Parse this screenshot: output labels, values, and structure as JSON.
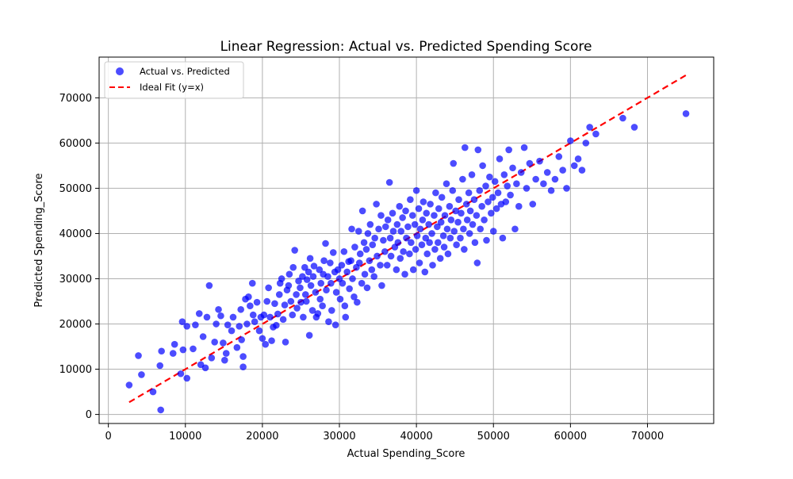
{
  "chart_data": {
    "type": "scatter",
    "title": "Linear Regression: Actual vs. Predicted Spending Score",
    "xlabel": "Actual Spending_Score",
    "ylabel": "Predicted Spending_Score",
    "xlim": [
      -1200,
      78600
    ],
    "ylim": [
      -2000,
      79000
    ],
    "xticks": [
      0,
      10000,
      20000,
      30000,
      40000,
      50000,
      60000,
      70000
    ],
    "yticks": [
      0,
      10000,
      20000,
      30000,
      40000,
      50000,
      60000,
      70000
    ],
    "grid": true,
    "legend_position": "top-left",
    "colors": {
      "points": "#0000ff",
      "ideal_line": "#ff0000"
    },
    "series": [
      {
        "name": "Actual vs. Predicted",
        "kind": "scatter",
        "points": [
          [
            2700,
            6500
          ],
          [
            3900,
            13000
          ],
          [
            4300,
            8800
          ],
          [
            5800,
            5000
          ],
          [
            6700,
            10800
          ],
          [
            6800,
            1000
          ],
          [
            6900,
            14000
          ],
          [
            8400,
            13500
          ],
          [
            8600,
            15500
          ],
          [
            9400,
            9000
          ],
          [
            9600,
            20500
          ],
          [
            9700,
            14300
          ],
          [
            10200,
            8000
          ],
          [
            10200,
            19500
          ],
          [
            11000,
            14500
          ],
          [
            11300,
            19800
          ],
          [
            11800,
            22300
          ],
          [
            12000,
            11000
          ],
          [
            12300,
            17200
          ],
          [
            12600,
            10300
          ],
          [
            12800,
            21500
          ],
          [
            13100,
            28500
          ],
          [
            13400,
            12500
          ],
          [
            13800,
            16000
          ],
          [
            14000,
            20000
          ],
          [
            14300,
            23200
          ],
          [
            14600,
            21800
          ],
          [
            14900,
            15800
          ],
          [
            15100,
            12000
          ],
          [
            15300,
            13500
          ],
          [
            15500,
            19800
          ],
          [
            16000,
            18500
          ],
          [
            16200,
            21500
          ],
          [
            16700,
            14800
          ],
          [
            17000,
            19500
          ],
          [
            17200,
            23200
          ],
          [
            17300,
            16500
          ],
          [
            17500,
            10500
          ],
          [
            17500,
            12800
          ],
          [
            17800,
            25500
          ],
          [
            18000,
            20000
          ],
          [
            18200,
            26000
          ],
          [
            18400,
            24000
          ],
          [
            18700,
            29000
          ],
          [
            18800,
            22000
          ],
          [
            19000,
            20500
          ],
          [
            19300,
            24800
          ],
          [
            19600,
            18500
          ],
          [
            19800,
            21500
          ],
          [
            20000,
            16800
          ],
          [
            20200,
            22000
          ],
          [
            20400,
            15500
          ],
          [
            20600,
            25000
          ],
          [
            20800,
            28000
          ],
          [
            21000,
            21500
          ],
          [
            21200,
            16300
          ],
          [
            21400,
            19300
          ],
          [
            21600,
            24500
          ],
          [
            21800,
            19700
          ],
          [
            22000,
            22200
          ],
          [
            22200,
            26500
          ],
          [
            22300,
            29000
          ],
          [
            22500,
            30000
          ],
          [
            22700,
            21000
          ],
          [
            22900,
            24200
          ],
          [
            23000,
            16000
          ],
          [
            23200,
            27500
          ],
          [
            23400,
            28500
          ],
          [
            23500,
            31000
          ],
          [
            23700,
            25000
          ],
          [
            23900,
            22000
          ],
          [
            24000,
            32500
          ],
          [
            24200,
            36300
          ],
          [
            24400,
            26500
          ],
          [
            24500,
            23500
          ],
          [
            24700,
            29500
          ],
          [
            24900,
            28000
          ],
          [
            25000,
            24800
          ],
          [
            25200,
            30500
          ],
          [
            25300,
            21500
          ],
          [
            25500,
            32500
          ],
          [
            25600,
            26500
          ],
          [
            25700,
            25000
          ],
          [
            25800,
            29800
          ],
          [
            26000,
            31500
          ],
          [
            26100,
            17500
          ],
          [
            26200,
            34500
          ],
          [
            26300,
            28500
          ],
          [
            26500,
            23000
          ],
          [
            26600,
            30500
          ],
          [
            26700,
            32800
          ],
          [
            26900,
            27000
          ],
          [
            27000,
            21500
          ],
          [
            27200,
            22300
          ],
          [
            27400,
            32000
          ],
          [
            27500,
            25500
          ],
          [
            27600,
            29000
          ],
          [
            27800,
            24000
          ],
          [
            27900,
            31000
          ],
          [
            28000,
            34000
          ],
          [
            28200,
            37800
          ],
          [
            28300,
            27500
          ],
          [
            28500,
            30500
          ],
          [
            28600,
            20500
          ],
          [
            28800,
            33500
          ],
          [
            28900,
            29000
          ],
          [
            29000,
            23000
          ],
          [
            29200,
            35800
          ],
          [
            29400,
            31500
          ],
          [
            29500,
            19800
          ],
          [
            29600,
            27000
          ],
          [
            29800,
            32000
          ],
          [
            30000,
            30000
          ],
          [
            30100,
            25500
          ],
          [
            30300,
            33000
          ],
          [
            30400,
            29000
          ],
          [
            30600,
            36000
          ],
          [
            30700,
            24000
          ],
          [
            30800,
            21500
          ],
          [
            31000,
            31500
          ],
          [
            31200,
            33800
          ],
          [
            31300,
            27800
          ],
          [
            31500,
            34000
          ],
          [
            31600,
            41000
          ],
          [
            31700,
            30000
          ],
          [
            31900,
            26000
          ],
          [
            32000,
            37000
          ],
          [
            32200,
            32500
          ],
          [
            32300,
            24800
          ],
          [
            32500,
            40500
          ],
          [
            32600,
            33500
          ],
          [
            32700,
            35500
          ],
          [
            32900,
            29000
          ],
          [
            33000,
            45000
          ],
          [
            33200,
            38000
          ],
          [
            33300,
            31000
          ],
          [
            33500,
            36500
          ],
          [
            33600,
            28000
          ],
          [
            33700,
            40000
          ],
          [
            33900,
            34000
          ],
          [
            34000,
            42000
          ],
          [
            34200,
            32000
          ],
          [
            34300,
            37500
          ],
          [
            34500,
            30500
          ],
          [
            34600,
            39000
          ],
          [
            34800,
            46500
          ],
          [
            34900,
            35000
          ],
          [
            35100,
            41000
          ],
          [
            35300,
            33000
          ],
          [
            35400,
            44000
          ],
          [
            35500,
            28500
          ],
          [
            35700,
            38500
          ],
          [
            35900,
            36000
          ],
          [
            36000,
            41500
          ],
          [
            36200,
            33000
          ],
          [
            36300,
            43000
          ],
          [
            36500,
            51300
          ],
          [
            36600,
            39000
          ],
          [
            36700,
            35000
          ],
          [
            36900,
            44500
          ],
          [
            37000,
            40500
          ],
          [
            37200,
            37000
          ],
          [
            37400,
            32000
          ],
          [
            37500,
            42000
          ],
          [
            37600,
            38000
          ],
          [
            37800,
            46000
          ],
          [
            37900,
            34500
          ],
          [
            38000,
            40500
          ],
          [
            38200,
            43500
          ],
          [
            38300,
            36000
          ],
          [
            38500,
            31000
          ],
          [
            38600,
            45000
          ],
          [
            38700,
            39000
          ],
          [
            38900,
            41500
          ],
          [
            39100,
            35500
          ],
          [
            39200,
            47500
          ],
          [
            39300,
            38000
          ],
          [
            39500,
            44000
          ],
          [
            39600,
            32000
          ],
          [
            39800,
            42000
          ],
          [
            39900,
            36500
          ],
          [
            40000,
            49500
          ],
          [
            40100,
            39500
          ],
          [
            40300,
            45500
          ],
          [
            40400,
            33500
          ],
          [
            40500,
            41000
          ],
          [
            40700,
            37500
          ],
          [
            40800,
            43000
          ],
          [
            40900,
            47000
          ],
          [
            41100,
            31500
          ],
          [
            41200,
            39000
          ],
          [
            41300,
            44500
          ],
          [
            41400,
            35500
          ],
          [
            41600,
            42000
          ],
          [
            41700,
            38000
          ],
          [
            41800,
            46500
          ],
          [
            42000,
            40000
          ],
          [
            42100,
            33000
          ],
          [
            42300,
            44000
          ],
          [
            42400,
            36500
          ],
          [
            42500,
            49000
          ],
          [
            42700,
            41500
          ],
          [
            42800,
            38000
          ],
          [
            42900,
            45500
          ],
          [
            43100,
            34500
          ],
          [
            43200,
            42500
          ],
          [
            43300,
            48000
          ],
          [
            43500,
            39500
          ],
          [
            43600,
            37000
          ],
          [
            43700,
            44000
          ],
          [
            43900,
            51000
          ],
          [
            44000,
            41000
          ],
          [
            44100,
            35500
          ],
          [
            44300,
            46000
          ],
          [
            44400,
            39000
          ],
          [
            44500,
            43000
          ],
          [
            44700,
            49500
          ],
          [
            44800,
            55500
          ],
          [
            44900,
            40500
          ],
          [
            45100,
            45000
          ],
          [
            45200,
            37500
          ],
          [
            45400,
            42500
          ],
          [
            45500,
            47500
          ],
          [
            45700,
            39000
          ],
          [
            45800,
            44500
          ],
          [
            46000,
            52000
          ],
          [
            46100,
            41000
          ],
          [
            46200,
            36500
          ],
          [
            46300,
            59000
          ],
          [
            46500,
            46500
          ],
          [
            46600,
            43000
          ],
          [
            46800,
            49000
          ],
          [
            46900,
            40000
          ],
          [
            47000,
            45000
          ],
          [
            47200,
            53000
          ],
          [
            47300,
            42000
          ],
          [
            47500,
            47500
          ],
          [
            47600,
            38000
          ],
          [
            47800,
            44000
          ],
          [
            47900,
            33500
          ],
          [
            48000,
            58500
          ],
          [
            48200,
            49500
          ],
          [
            48300,
            41000
          ],
          [
            48500,
            46000
          ],
          [
            48600,
            55000
          ],
          [
            48800,
            43000
          ],
          [
            49000,
            50500
          ],
          [
            49100,
            38500
          ],
          [
            49300,
            47000
          ],
          [
            49500,
            52500
          ],
          [
            49700,
            44500
          ],
          [
            49900,
            48000
          ],
          [
            50000,
            40500
          ],
          [
            50200,
            51500
          ],
          [
            50400,
            45500
          ],
          [
            50600,
            49000
          ],
          [
            50800,
            56500
          ],
          [
            51000,
            46500
          ],
          [
            51200,
            39000
          ],
          [
            51400,
            53000
          ],
          [
            51600,
            47000
          ],
          [
            51800,
            50500
          ],
          [
            52000,
            58500
          ],
          [
            52200,
            48500
          ],
          [
            52500,
            54500
          ],
          [
            52800,
            41000
          ],
          [
            53000,
            51000
          ],
          [
            53300,
            46000
          ],
          [
            53600,
            53500
          ],
          [
            54000,
            59000
          ],
          [
            54300,
            50000
          ],
          [
            54700,
            55500
          ],
          [
            55100,
            46500
          ],
          [
            55500,
            52000
          ],
          [
            56000,
            56000
          ],
          [
            56500,
            51000
          ],
          [
            57000,
            53500
          ],
          [
            57500,
            49500
          ],
          [
            58000,
            52000
          ],
          [
            58500,
            57000
          ],
          [
            59000,
            54000
          ],
          [
            59500,
            50000
          ],
          [
            60000,
            60500
          ],
          [
            60500,
            55000
          ],
          [
            61000,
            56500
          ],
          [
            61500,
            54000
          ],
          [
            62000,
            60000
          ],
          [
            62500,
            63500
          ],
          [
            63300,
            62000
          ],
          [
            66800,
            65500
          ],
          [
            68300,
            63500
          ],
          [
            75000,
            66500
          ]
        ]
      },
      {
        "name": "Ideal Fit (y=x)",
        "kind": "line",
        "style": "dashed",
        "points": [
          [
            2700,
            2700
          ],
          [
            75000,
            75000
          ]
        ]
      }
    ]
  }
}
